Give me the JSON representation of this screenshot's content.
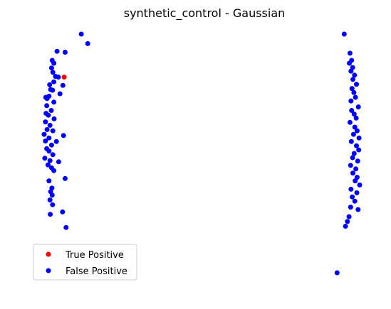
{
  "chart_data": {
    "type": "scatter",
    "title": "synthetic_control - Gaussian",
    "xlabel": "",
    "ylabel": "",
    "axes_visible": false,
    "grid": false,
    "xlim": [
      0,
      100
    ],
    "ylim": [
      0,
      100
    ],
    "legend": {
      "placement": "lower-left"
    },
    "series": [
      {
        "name": "True Positive",
        "color": "#ff0000",
        "points": [
          [
            6.2,
            82.0
          ]
        ]
      },
      {
        "name": "False Positive",
        "color": "#0000ff",
        "points": [
          [
            11.5,
            100.0
          ],
          [
            13.5,
            96.0
          ],
          [
            4.0,
            92.8
          ],
          [
            6.5,
            92.4
          ],
          [
            2.5,
            89.0
          ],
          [
            3.0,
            87.8
          ],
          [
            2.3,
            85.8
          ],
          [
            2.7,
            84.0
          ],
          [
            3.5,
            82.3
          ],
          [
            4.4,
            82.0
          ],
          [
            3.0,
            80.0
          ],
          [
            1.7,
            78.8
          ],
          [
            5.8,
            78.5
          ],
          [
            2.0,
            76.8
          ],
          [
            2.6,
            76.5
          ],
          [
            4.9,
            75.0
          ],
          [
            1.5,
            74.0
          ],
          [
            0.5,
            73.5
          ],
          [
            0.9,
            73.0
          ],
          [
            3.0,
            71.5
          ],
          [
            0.8,
            70.0
          ],
          [
            2.2,
            68.0
          ],
          [
            0.6,
            66.8
          ],
          [
            1.3,
            66.0
          ],
          [
            3.1,
            64.5
          ],
          [
            0.4,
            63.2
          ],
          [
            1.8,
            61.8
          ],
          [
            0.9,
            60.0
          ],
          [
            2.7,
            59.5
          ],
          [
            0.0,
            58.0
          ],
          [
            6.0,
            57.5
          ],
          [
            1.5,
            56.5
          ],
          [
            0.4,
            55.2
          ],
          [
            3.8,
            55.0
          ],
          [
            2.3,
            53.5
          ],
          [
            0.8,
            52.0
          ],
          [
            1.5,
            51.0
          ],
          [
            2.7,
            49.5
          ],
          [
            0.2,
            48.0
          ],
          [
            1.8,
            47.0
          ],
          [
            4.5,
            46.5
          ],
          [
            1.2,
            45.2
          ],
          [
            2.3,
            44.0
          ],
          [
            3.0,
            42.8
          ],
          [
            6.5,
            39.5
          ],
          [
            1.5,
            38.5
          ],
          [
            2.4,
            35.5
          ],
          [
            2.0,
            34.0
          ],
          [
            2.5,
            32.5
          ],
          [
            1.8,
            30.5
          ],
          [
            2.6,
            28.5
          ],
          [
            5.7,
            25.5
          ],
          [
            1.9,
            24.5
          ],
          [
            6.8,
            19.0
          ],
          [
            93.0,
            100.0
          ],
          [
            94.8,
            92.0
          ],
          [
            95.3,
            89.0
          ],
          [
            94.6,
            87.8
          ],
          [
            95.6,
            86.0
          ],
          [
            95.1,
            84.5
          ],
          [
            96.2,
            82.8
          ],
          [
            95.7,
            81.0
          ],
          [
            96.8,
            79.0
          ],
          [
            95.4,
            77.2
          ],
          [
            96.0,
            75.5
          ],
          [
            96.5,
            73.5
          ],
          [
            95.1,
            72.0
          ],
          [
            97.4,
            69.5
          ],
          [
            95.3,
            68.0
          ],
          [
            96.1,
            66.5
          ],
          [
            96.7,
            64.8
          ],
          [
            94.8,
            63.0
          ],
          [
            96.3,
            61.0
          ],
          [
            97.0,
            59.5
          ],
          [
            95.9,
            58.0
          ],
          [
            97.6,
            56.5
          ],
          [
            95.2,
            55.0
          ],
          [
            96.8,
            53.2
          ],
          [
            97.5,
            51.5
          ],
          [
            96.1,
            50.0
          ],
          [
            95.6,
            48.2
          ],
          [
            97.2,
            46.8
          ],
          [
            95.0,
            45.0
          ],
          [
            96.6,
            43.5
          ],
          [
            95.7,
            41.8
          ],
          [
            97.0,
            40.0
          ],
          [
            96.4,
            38.5
          ],
          [
            97.8,
            36.8
          ],
          [
            95.1,
            35.0
          ],
          [
            96.9,
            33.5
          ],
          [
            95.5,
            31.8
          ],
          [
            96.3,
            30.0
          ],
          [
            95.0,
            27.5
          ],
          [
            97.3,
            26.5
          ],
          [
            94.5,
            23.5
          ],
          [
            94.0,
            21.5
          ],
          [
            93.4,
            19.5
          ],
          [
            90.8,
            0.0
          ]
        ]
      }
    ]
  }
}
